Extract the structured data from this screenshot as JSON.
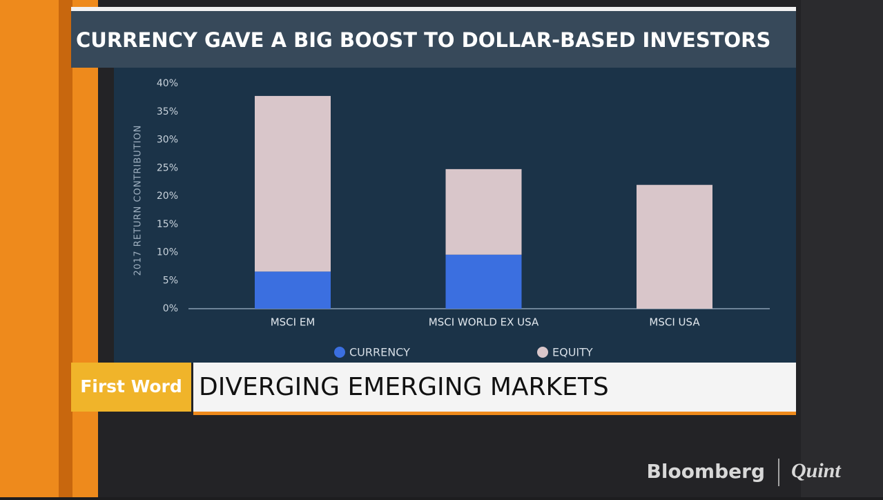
{
  "chart_data": {
    "type": "stacked_bar",
    "title": "CURRENCY GAVE A BIG BOOST TO DOLLAR-BASED INVESTORS",
    "y_label": "2017 RETURN CONTRIBUTION",
    "categories": [
      "MSCI EM",
      "MSCI WORLD EX USA",
      "MSCI USA"
    ],
    "series": [
      {
        "name": "CURRENCY",
        "color": "#3b6fe0",
        "values": [
          6.6,
          9.6,
          0
        ]
      },
      {
        "name": "EQUITY",
        "color": "#d9c6ca",
        "values": [
          31.2,
          15.2,
          22.0
        ]
      }
    ],
    "ylim": [
      0,
      40
    ],
    "yticks": [
      {
        "value": 0,
        "label": "0%"
      },
      {
        "value": 5,
        "label": "5%"
      },
      {
        "value": 10,
        "label": "10%"
      },
      {
        "value": 15,
        "label": "15%"
      },
      {
        "value": 20,
        "label": "20%"
      },
      {
        "value": 25,
        "label": "25%"
      },
      {
        "value": 30,
        "label": "30%"
      },
      {
        "value": 35,
        "label": "35%"
      },
      {
        "value": 40,
        "label": "40%"
      }
    ],
    "legend": "bottom"
  },
  "lower_third": {
    "tag": "First Word",
    "headline": "DIVERGING EMERGING MARKETS"
  },
  "logo": {
    "brand": "Bloomberg",
    "partner": "Quint"
  }
}
